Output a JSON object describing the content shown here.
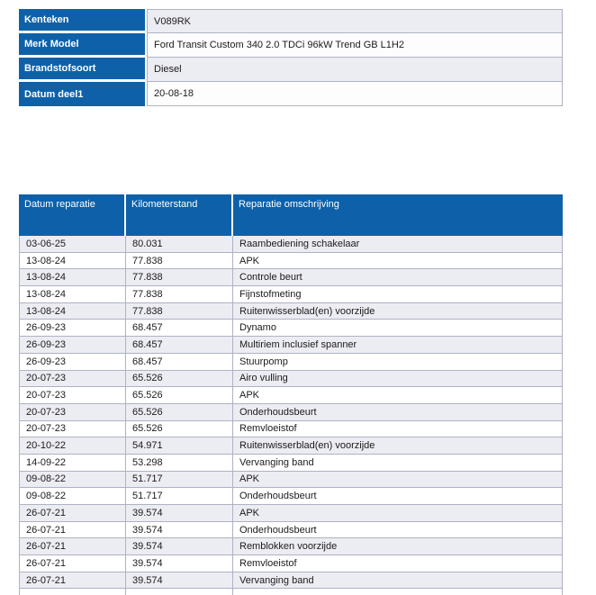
{
  "colors": {
    "header_blue": "#0e61a9",
    "row_shaded": "#ececf3",
    "row_plain": "#ffffff",
    "grid_border": "#aeb2c2",
    "header_text": "#ffffff",
    "body_text": "#1b1b1b"
  },
  "vehicle_info": {
    "rows": [
      {
        "label": "Kenteken",
        "value": "V089RK"
      },
      {
        "label": "Merk Model",
        "value": "Ford Transit Custom 340 2.0 TDCi 96kW Trend GB L1H2"
      },
      {
        "label": "Brandstofsoort",
        "value": "Diesel"
      },
      {
        "label": "Datum deel1",
        "value": "20-08-18"
      }
    ]
  },
  "repair_history": {
    "columns": [
      "Datum reparatie",
      "Kilometerstand",
      "Reparatie omschrijving"
    ],
    "rows": [
      [
        "03-06-25",
        "80.031",
        "Raambediening schakelaar"
      ],
      [
        "13-08-24",
        "77.838",
        "APK"
      ],
      [
        "13-08-24",
        "77.838",
        "Controle beurt"
      ],
      [
        "13-08-24",
        "77.838",
        "Fijnstofmeting"
      ],
      [
        "13-08-24",
        "77.838",
        "Ruitenwisserblad(en) voorzijde"
      ],
      [
        "26-09-23",
        "68.457",
        "Dynamo"
      ],
      [
        "26-09-23",
        "68.457",
        "Multiriem inclusief spanner"
      ],
      [
        "26-09-23",
        "68.457",
        "Stuurpomp"
      ],
      [
        "20-07-23",
        "65.526",
        "Airo vulling"
      ],
      [
        "20-07-23",
        "65.526",
        "APK"
      ],
      [
        "20-07-23",
        "65.526",
        "Onderhoudsbeurt"
      ],
      [
        "20-07-23",
        "65.526",
        "Remvloeistof"
      ],
      [
        "20-10-22",
        "54.971",
        "Ruitenwisserblad(en) voorzijde"
      ],
      [
        "14-09-22",
        "53.298",
        "Vervanging band"
      ],
      [
        "09-08-22",
        "51.717",
        "APK"
      ],
      [
        "09-08-22",
        "51.717",
        "Onderhoudsbeurt"
      ],
      [
        "26-07-21",
        "39.574",
        "APK"
      ],
      [
        "26-07-21",
        "39.574",
        "Onderhoudsbeurt"
      ],
      [
        "26-07-21",
        "39.574",
        "Remblokken voorzijde"
      ],
      [
        "26-07-21",
        "39.574",
        "Remvloeistof"
      ],
      [
        "26-07-21",
        "39.574",
        "Vervanging band"
      ]
    ]
  }
}
